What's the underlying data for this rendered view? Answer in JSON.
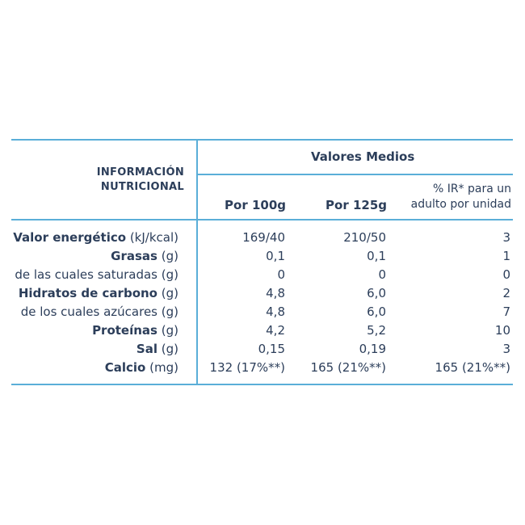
{
  "header": {
    "title_line1": "INFORMACIÓN",
    "title_line2": "NUTRICIONAL",
    "group": "Valores Medios",
    "col1": "Por 100g",
    "col2": "Por 125g",
    "col3_line1": "% IR* para un",
    "col3_line2": "adulto por unidad"
  },
  "rows": [
    {
      "label": "Valor energético",
      "unit": "(kJ/kcal)",
      "bold": true,
      "v1": "169/40",
      "v2": "210/50",
      "v3": "3"
    },
    {
      "label": "Grasas",
      "unit": "(g)",
      "bold": true,
      "v1": "0,1",
      "v2": "0,1",
      "v3": "1"
    },
    {
      "label": "de las cuales saturadas",
      "unit": "(g)",
      "bold": false,
      "v1": "0",
      "v2": "0",
      "v3": "0"
    },
    {
      "label": "Hidratos de carbono",
      "unit": "(g)",
      "bold": true,
      "v1": "4,8",
      "v2": "6,0",
      "v3": "2"
    },
    {
      "label": "de los cuales azúcares",
      "unit": "(g)",
      "bold": false,
      "v1": "4,8",
      "v2": "6,0",
      "v3": "7"
    },
    {
      "label": "Proteínas",
      "unit": "(g)",
      "bold": true,
      "v1": "4,2",
      "v2": "5,2",
      "v3": "10"
    },
    {
      "label": "Sal",
      "unit": "(g)",
      "bold": true,
      "v1": "0,15",
      "v2": "0,19",
      "v3": "3"
    },
    {
      "label": "Calcio",
      "unit": "(mg)",
      "bold": true,
      "v1": "132 (17%**)",
      "v2": "165 (21%**)",
      "v3": "165 (21%**)"
    }
  ],
  "colors": {
    "line": "#5aaed8",
    "text": "#2c3e5a"
  }
}
